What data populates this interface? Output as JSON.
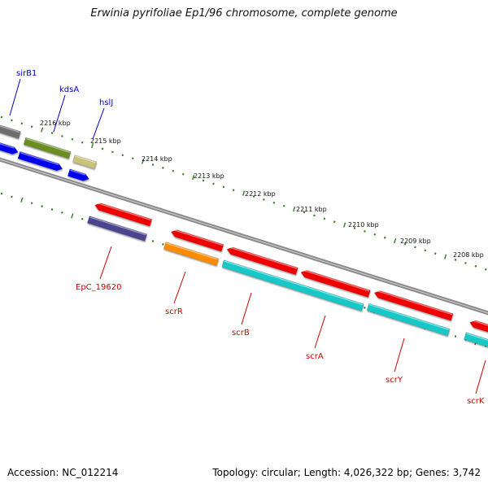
{
  "title": "Erwinia pyrifoliae Ep1/96 chromosome, complete genome",
  "footer": {
    "accession": "Accession: NC_012214",
    "summary": "Topology: circular; Length: 4,026,322 bp; Genes: 3,742"
  },
  "ruler": {
    "unit": "kbp",
    "labels": [
      "2216 kbp",
      "2215 kbp",
      "2214 kbp",
      "2213 kbp",
      "2212 kbp",
      "2211 kbp",
      "2210 kbp",
      "2209 kbp",
      "2208 kbp"
    ]
  },
  "genes_top": [
    {
      "name": "sirB1",
      "color": "#0000bb"
    },
    {
      "name": "kdsA",
      "color": "#0000bb"
    },
    {
      "name": "hslJ",
      "color": "#0000bb"
    }
  ],
  "genes_bottom": [
    {
      "name": "EpC_19620",
      "color": "#cc0000"
    },
    {
      "name": "scrR",
      "color": "#cc0000"
    },
    {
      "name": "scrB",
      "color": "#cc0000"
    },
    {
      "name": "scrA",
      "color": "#cc0000"
    },
    {
      "name": "scrY",
      "color": "#cc0000"
    },
    {
      "name": "scrK",
      "color": "#cc0000"
    }
  ],
  "colors": {
    "backbone": "#8a8a8a",
    "tick": "#2e7d1e",
    "forward_gene": "#0000ee",
    "reverse_gene": "#ee0000",
    "cog_olive": "#6b8e23",
    "cog_khaki": "#c8c27a",
    "cog_gray": "#6e6e6e",
    "cog_slate": "#4b4490",
    "cog_orange": "#ff8c00",
    "cog_cyan": "#19c8c8"
  }
}
